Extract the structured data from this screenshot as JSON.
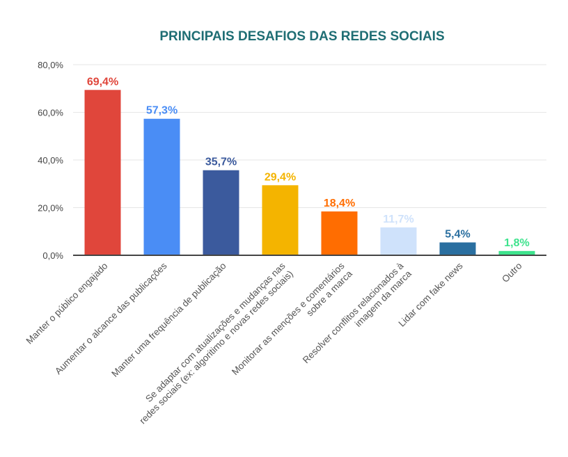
{
  "chart_data": {
    "type": "bar",
    "title": "PRINCIPAIS DESAFIOS DAS REDES SOCIAIS",
    "xlabel": "",
    "ylabel": "",
    "ylim": [
      0,
      80
    ],
    "y_ticks": [
      "0,0%",
      "20,0%",
      "40,0%",
      "60,0%",
      "80,0%"
    ],
    "y_tick_values": [
      0,
      20,
      40,
      60,
      80
    ],
    "grid": true,
    "legend": "none",
    "categories": [
      [
        "Manter o público engajado"
      ],
      [
        "Aumentar o alcance das publicações"
      ],
      [
        "Manter uma frequência de publicação"
      ],
      [
        "Se adaptar com atualizações e mudanças nas",
        "redes sociais (ex: algoritimo e novas redes sociais)"
      ],
      [
        "Monitorar as menções e comentários",
        "sobre a marca"
      ],
      [
        "Resolver conflitos relacionados à",
        "imagem da marca"
      ],
      [
        "Lidar com fake news"
      ],
      [
        "Outro"
      ]
    ],
    "values": [
      69.4,
      57.3,
      35.7,
      29.4,
      18.4,
      11.7,
      5.4,
      1.8
    ],
    "value_labels": [
      "69,4%",
      "57,3%",
      "35,7%",
      "29,4%",
      "18,4%",
      "11,7%",
      "5,4%",
      "1,8%"
    ],
    "colors": [
      "#e0463b",
      "#4a8df5",
      "#3b5a9d",
      "#f4b400",
      "#ff6d01",
      "#cfe2fb",
      "#2a6fa0",
      "#3ee38d"
    ]
  }
}
